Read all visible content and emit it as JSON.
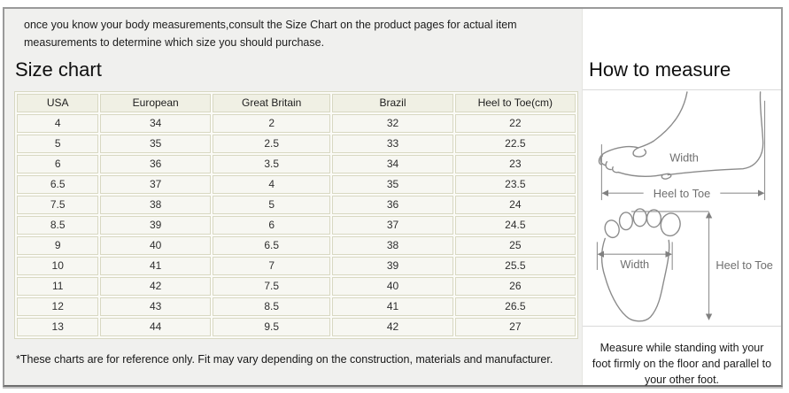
{
  "intro": {
    "text": "once you know your body measurements,consult the Size Chart on the product pages for actual item measurements to determine which size you should purchase."
  },
  "size_chart": {
    "title": "Size chart",
    "table": {
      "headers": [
        "USA",
        "European",
        "Great Britain",
        "Brazil",
        "Heel to Toe(cm)"
      ],
      "rows": [
        [
          "4",
          "34",
          "2",
          "32",
          "22"
        ],
        [
          "5",
          "35",
          "2.5",
          "33",
          "22.5"
        ],
        [
          "6",
          "36",
          "3.5",
          "34",
          "23"
        ],
        [
          "6.5",
          "37",
          "4",
          "35",
          "23.5"
        ],
        [
          "7.5",
          "38",
          "5",
          "36",
          "24"
        ],
        [
          "8.5",
          "39",
          "6",
          "37",
          "24.5"
        ],
        [
          "9",
          "40",
          "6.5",
          "38",
          "25"
        ],
        [
          "10",
          "41",
          "7",
          "39",
          "25.5"
        ],
        [
          "11",
          "42",
          "7.5",
          "40",
          "26"
        ],
        [
          "12",
          "43",
          "8.5",
          "41",
          "26.5"
        ],
        [
          "13",
          "44",
          "9.5",
          "42",
          "27"
        ]
      ]
    },
    "footnote": "*These charts are for reference only. Fit may vary depending on the construction, materials and manufacturer."
  },
  "how_to_measure": {
    "title": "How to measure",
    "side_view": {
      "width_label": "Width",
      "length_label": "Heel to Toe"
    },
    "top_view": {
      "width_label": "Width",
      "length_label": "Heel to Toe"
    },
    "instructions": "Measure while standing with your foot firmly on the floor and parallel to your other foot."
  },
  "colors": {
    "page_bg": "#f0f0ee",
    "panel_bg": "#ffffff",
    "frame_border": "#9a9a9a",
    "table_border": "#d8d8c2",
    "header_cell_bg": "#f0f0e4",
    "data_cell_bg": "#f7f7f2",
    "text": "#1c1c1c",
    "diagram_line": "#8b8b8b"
  }
}
